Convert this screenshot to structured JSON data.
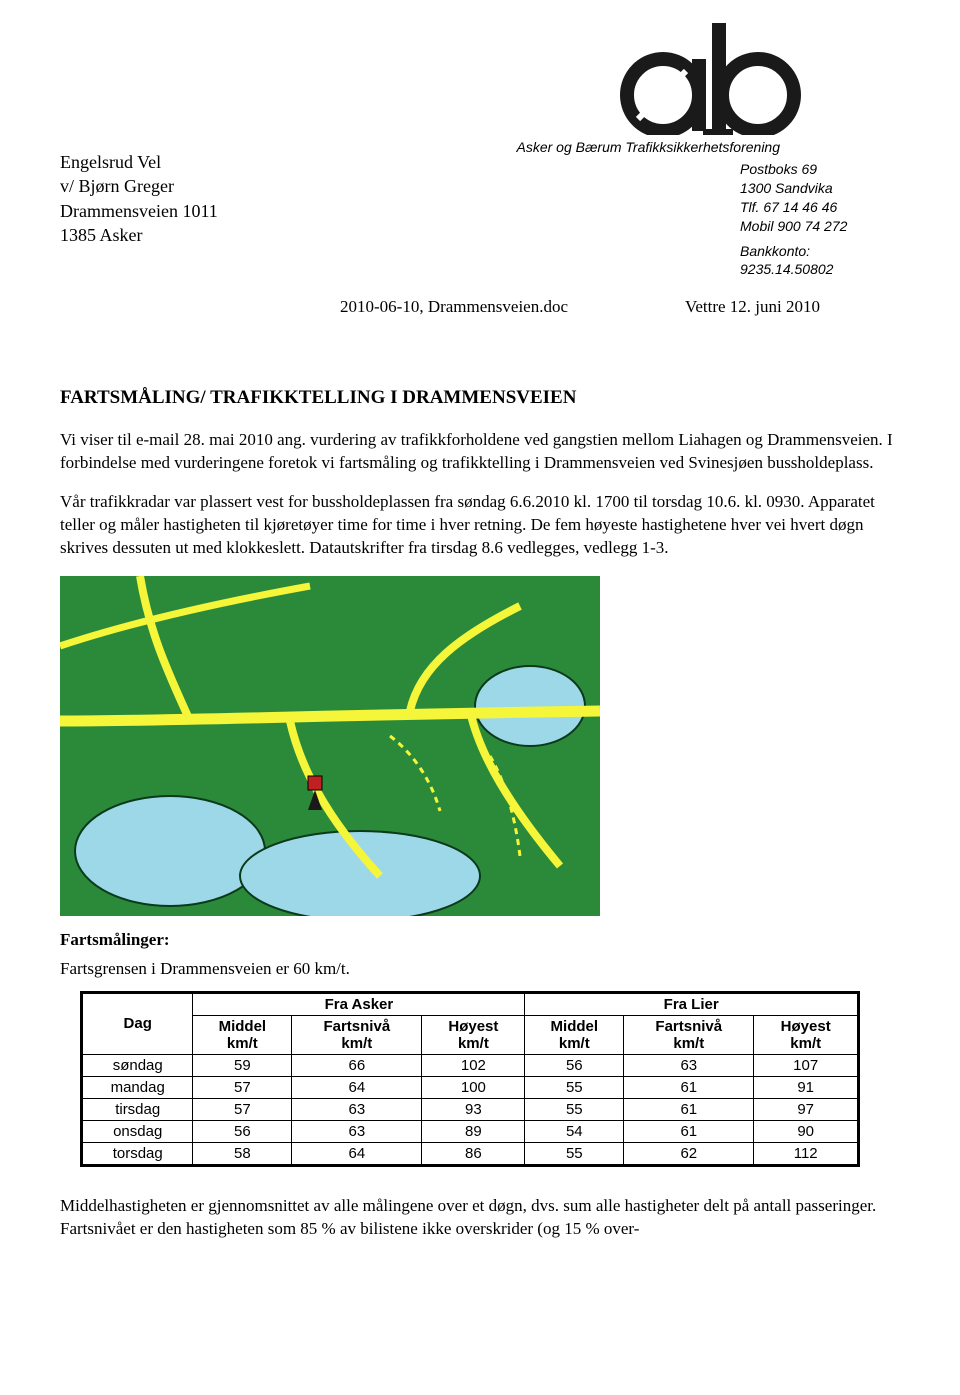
{
  "logo": {
    "caption": "Asker og Bærum Trafikksikkerhetsforening",
    "colors": {
      "black": "#1a1a1a",
      "white": "#ffffff"
    }
  },
  "sender_address": {
    "line1": "Engelsrud Vel",
    "line2": "v/ Bjørn Greger",
    "line3": "Drammensveien 1011",
    "line4": "1385 Asker"
  },
  "contact": {
    "line1": "Postboks 69",
    "line2": "1300 Sandvika",
    "line3": "Tlf. 67 14 46 46",
    "line4": "Mobil 900 74 272",
    "line5": "Bankkonto:",
    "line6": "9235.14.50802"
  },
  "docref": {
    "file": "2010-06-10, Drammensveien.doc",
    "place_date": "Vettre 12. juni 2010"
  },
  "title": "FARTSMÅLING/ TRAFIKKTELLING I DRAMMENSVEIEN",
  "paragraphs": {
    "p1": "Vi viser til e-mail 28. mai 2010 ang. vurdering av trafikkforholdene ved gangstien mellom Liahagen og Drammensveien. I forbindelse med vurderingene foretok vi fartsmåling og trafikktelling i Drammensveien ved Svinesjøen bussholdeplass.",
    "p2": "Vår trafikkradar var plassert vest for bussholdeplassen fra søndag 6.6.2010 kl. 1700 til torsdag 10.6. kl. 0930. Apparatet teller og måler hastigheten til kjøretøyer time for time i hver retning. De fem høyeste hastighetene hver vei hvert døgn skrives dessuten ut med klokkeslett. Datautskrifter fra tirsdag 8.6 vedlegges, vedlegg 1-3."
  },
  "map": {
    "colors": {
      "land": "#2a8a3a",
      "water": "#9dd8e8",
      "roads": "#f5f53a",
      "marker": "#c02020",
      "outline": "#0a3a1a"
    }
  },
  "speed_section": {
    "heading": "Fartsmålinger:",
    "limit_line": "Fartsgrensen i Drammensveien er 60 km/t."
  },
  "table": {
    "head": {
      "day": "Dag",
      "from_asker": "Fra Asker",
      "from_lier": "Fra Lier",
      "middel": "Middel km/t",
      "fartsniva": "Fartsnivå km/t",
      "hoyest": "Høyest km/t"
    },
    "rows": [
      {
        "day": "søndag",
        "a": [
          59,
          66,
          102
        ],
        "l": [
          56,
          63,
          107
        ]
      },
      {
        "day": "mandag",
        "a": [
          57,
          64,
          100
        ],
        "l": [
          55,
          61,
          91
        ]
      },
      {
        "day": "tirsdag",
        "a": [
          57,
          63,
          93
        ],
        "l": [
          55,
          61,
          97
        ]
      },
      {
        "day": "onsdag",
        "a": [
          56,
          63,
          89
        ],
        "l": [
          54,
          61,
          90
        ]
      },
      {
        "day": "torsdag",
        "a": [
          58,
          64,
          86
        ],
        "l": [
          55,
          62,
          112
        ]
      }
    ]
  },
  "trailer": "Middelhastigheten er gjennomsnittet av alle målingene over et døgn, dvs. sum alle hastigheter delt på antall passeringer. Fartsnivået er den hastigheten som 85 % av bilistene ikke overskrider (og 15 % over-"
}
